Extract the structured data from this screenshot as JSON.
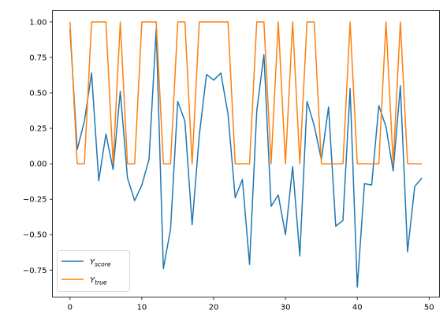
{
  "chart_data": {
    "type": "line",
    "title": "",
    "xlabel": "",
    "ylabel": "",
    "xlim": [
      -2.45,
      51.45
    ],
    "ylim": [
      -0.94,
      1.08
    ],
    "x_ticks": [
      0,
      10,
      20,
      30,
      40,
      50
    ],
    "y_ticks": [
      -0.75,
      -0.5,
      -0.25,
      0.0,
      0.25,
      0.5,
      0.75,
      1.0
    ],
    "x_tick_labels": [
      "0",
      "10",
      "20",
      "30",
      "40",
      "50"
    ],
    "y_tick_labels": [
      "−0.75",
      "−0.50",
      "−0.25",
      "0.00",
      "0.25",
      "0.50",
      "0.75",
      "1.00"
    ],
    "grid": false,
    "legend_position": "lower-left",
    "x": [
      0,
      1,
      2,
      3,
      4,
      5,
      6,
      7,
      8,
      9,
      10,
      11,
      12,
      13,
      14,
      15,
      16,
      17,
      18,
      19,
      20,
      21,
      22,
      23,
      24,
      25,
      26,
      27,
      28,
      29,
      30,
      31,
      32,
      33,
      34,
      35,
      36,
      37,
      38,
      39,
      40,
      41,
      42,
      43,
      44,
      45,
      46,
      47,
      48,
      49
    ],
    "series": [
      {
        "name": "score",
        "legend_main": "Y",
        "legend_sub": "score",
        "color": "#1f77b4",
        "values": [
          0.95,
          0.1,
          0.3,
          0.64,
          -0.12,
          0.21,
          -0.04,
          0.51,
          -0.1,
          -0.26,
          -0.15,
          0.03,
          0.95,
          -0.74,
          -0.46,
          0.44,
          0.3,
          -0.43,
          0.2,
          0.63,
          0.59,
          0.64,
          0.35,
          -0.24,
          -0.11,
          -0.71,
          0.37,
          0.77,
          -0.3,
          -0.22,
          -0.5,
          -0.02,
          -0.65,
          0.44,
          0.27,
          0.03,
          0.4,
          -0.44,
          -0.4,
          0.53,
          -0.87,
          -0.14,
          -0.15,
          0.41,
          0.26,
          -0.05,
          0.55,
          -0.62,
          -0.16,
          -0.1
        ]
      },
      {
        "name": "true",
        "legend_main": "Y",
        "legend_sub": "true",
        "color": "#ff7f0e",
        "values": [
          1,
          0,
          0,
          1,
          1,
          1,
          0,
          1,
          0,
          0,
          1,
          1,
          1,
          0,
          0,
          1,
          1,
          0,
          1,
          1,
          1,
          1,
          1,
          0,
          0,
          0,
          1,
          1,
          0,
          1,
          0,
          1,
          0,
          1,
          1,
          0,
          0,
          0,
          0,
          1,
          0,
          0,
          0,
          0,
          1,
          0,
          1,
          0,
          0,
          0
        ]
      }
    ]
  }
}
